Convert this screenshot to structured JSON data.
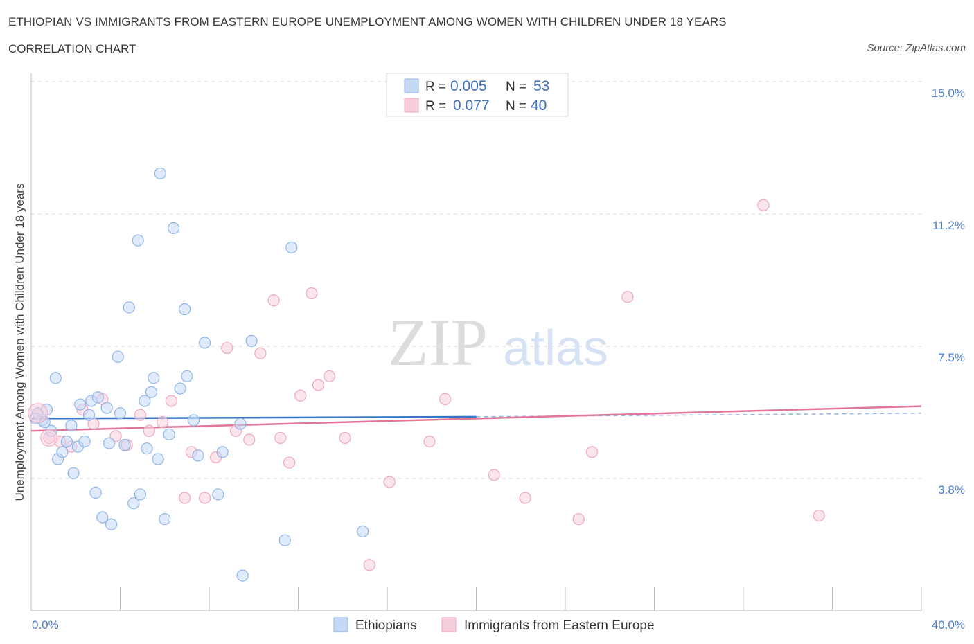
{
  "header": {
    "title": "ETHIOPIAN VS IMMIGRANTS FROM EASTERN EUROPE UNEMPLOYMENT AMONG WOMEN WITH CHILDREN UNDER 18 YEARS",
    "subtitle": "CORRELATION CHART",
    "source": "Source: ZipAtlas.com"
  },
  "watermark": {
    "zip": "ZIP",
    "atlas": "atlas"
  },
  "colors": {
    "blue": "#8fb4e8",
    "blue_fill": "#c5d9f5",
    "blue_line": "#3a75c8",
    "pink": "#eda6bd",
    "pink_fill": "#f7cfdc",
    "pink_line": "#e2769a",
    "grid": "#d8d8d8",
    "axis_text": "#4a7cc7"
  },
  "chart_data": {
    "type": "scatter",
    "title": "ETHIOPIAN VS IMMIGRANTS FROM EASTERN EUROPE UNEMPLOYMENT AMONG WOMEN WITH CHILDREN UNDER 18 YEARS",
    "ylabel": "Unemployment Among Women with Children Under 18 years",
    "xlim": [
      0,
      40
    ],
    "ylim": [
      0,
      15
    ],
    "x_tick_labels": [
      "0.0%",
      "40.0%"
    ],
    "y_ticks": [
      {
        "value": 3.75,
        "label": "3.8%"
      },
      {
        "value": 7.5,
        "label": "7.5%"
      },
      {
        "value": 11.25,
        "label": "11.2%"
      },
      {
        "value": 15.0,
        "label": "15.0%"
      }
    ],
    "grid": true,
    "legend_position": "top-center",
    "legend": [
      {
        "r_label": "R =",
        "r_value": "0.005",
        "n_label": "N =",
        "n_value": "53"
      },
      {
        "r_label": "R =",
        "r_value": "0.077",
        "n_label": "N =",
        "n_value": "40"
      }
    ],
    "series": [
      {
        "name": "Ethiopians",
        "color": "#8fb4e8",
        "trend": {
          "x": [
            0,
            20
          ],
          "y": [
            5.45,
            5.5
          ],
          "dashed_to": [
            40,
            5.6
          ]
        },
        "points": [
          [
            0.3,
            5.6
          ],
          [
            0.5,
            5.4
          ],
          [
            0.6,
            5.35
          ],
          [
            0.7,
            5.7
          ],
          [
            0.9,
            5.1
          ],
          [
            1.1,
            6.6
          ],
          [
            1.2,
            4.3
          ],
          [
            1.4,
            4.5
          ],
          [
            1.6,
            4.8
          ],
          [
            1.8,
            5.25
          ],
          [
            1.9,
            3.9
          ],
          [
            2.1,
            4.65
          ],
          [
            2.2,
            5.85
          ],
          [
            2.4,
            4.8
          ],
          [
            2.6,
            5.55
          ],
          [
            2.7,
            5.95
          ],
          [
            2.9,
            3.35
          ],
          [
            3.0,
            6.05
          ],
          [
            3.2,
            2.65
          ],
          [
            3.4,
            5.75
          ],
          [
            3.5,
            4.75
          ],
          [
            3.6,
            2.45
          ],
          [
            3.9,
            7.2
          ],
          [
            4.0,
            5.6
          ],
          [
            4.2,
            4.7
          ],
          [
            4.4,
            8.6
          ],
          [
            4.6,
            3.05
          ],
          [
            4.8,
            10.5
          ],
          [
            4.9,
            3.3
          ],
          [
            5.1,
            5.95
          ],
          [
            5.2,
            4.6
          ],
          [
            5.4,
            6.2
          ],
          [
            5.5,
            6.6
          ],
          [
            5.7,
            4.3
          ],
          [
            5.8,
            12.4
          ],
          [
            6.0,
            2.6
          ],
          [
            6.2,
            5.0
          ],
          [
            6.4,
            10.85
          ],
          [
            6.7,
            6.3
          ],
          [
            6.9,
            8.55
          ],
          [
            7.0,
            6.65
          ],
          [
            7.3,
            5.4
          ],
          [
            7.5,
            4.4
          ],
          [
            7.8,
            7.6
          ],
          [
            8.4,
            3.3
          ],
          [
            8.6,
            4.5
          ],
          [
            9.4,
            5.3
          ],
          [
            9.5,
            1.0
          ],
          [
            9.9,
            7.65
          ],
          [
            11.4,
            2.0
          ],
          [
            11.7,
            10.3
          ],
          [
            14.9,
            2.25
          ],
          [
            0.2,
            5.45
          ]
        ]
      },
      {
        "name": "Immigrants from Eastern Europe",
        "color": "#eda6bd",
        "trend": {
          "x": [
            0,
            40
          ],
          "y": [
            5.1,
            5.8
          ]
        },
        "points": [
          [
            0.3,
            5.6
          ],
          [
            0.8,
            4.9
          ],
          [
            1.3,
            4.8
          ],
          [
            1.8,
            4.65
          ],
          [
            2.3,
            5.7
          ],
          [
            2.8,
            5.3
          ],
          [
            3.2,
            6.0
          ],
          [
            3.8,
            4.95
          ],
          [
            4.3,
            4.7
          ],
          [
            4.9,
            5.55
          ],
          [
            5.3,
            5.1
          ],
          [
            5.9,
            5.35
          ],
          [
            6.3,
            5.95
          ],
          [
            6.9,
            3.2
          ],
          [
            7.2,
            4.5
          ],
          [
            7.8,
            3.2
          ],
          [
            8.3,
            4.35
          ],
          [
            8.8,
            7.45
          ],
          [
            9.2,
            5.1
          ],
          [
            9.8,
            4.85
          ],
          [
            10.3,
            7.3
          ],
          [
            10.9,
            8.8
          ],
          [
            11.2,
            4.9
          ],
          [
            11.6,
            4.2
          ],
          [
            12.1,
            6.1
          ],
          [
            12.6,
            9.0
          ],
          [
            12.9,
            6.4
          ],
          [
            13.4,
            6.65
          ],
          [
            14.1,
            4.9
          ],
          [
            15.2,
            1.3
          ],
          [
            16.1,
            3.65
          ],
          [
            17.9,
            4.8
          ],
          [
            18.6,
            6.0
          ],
          [
            20.8,
            3.85
          ],
          [
            22.2,
            3.2
          ],
          [
            24.6,
            2.6
          ],
          [
            25.2,
            4.5
          ],
          [
            26.8,
            8.9
          ],
          [
            32.9,
            11.5
          ],
          [
            35.4,
            2.7
          ]
        ]
      }
    ]
  }
}
